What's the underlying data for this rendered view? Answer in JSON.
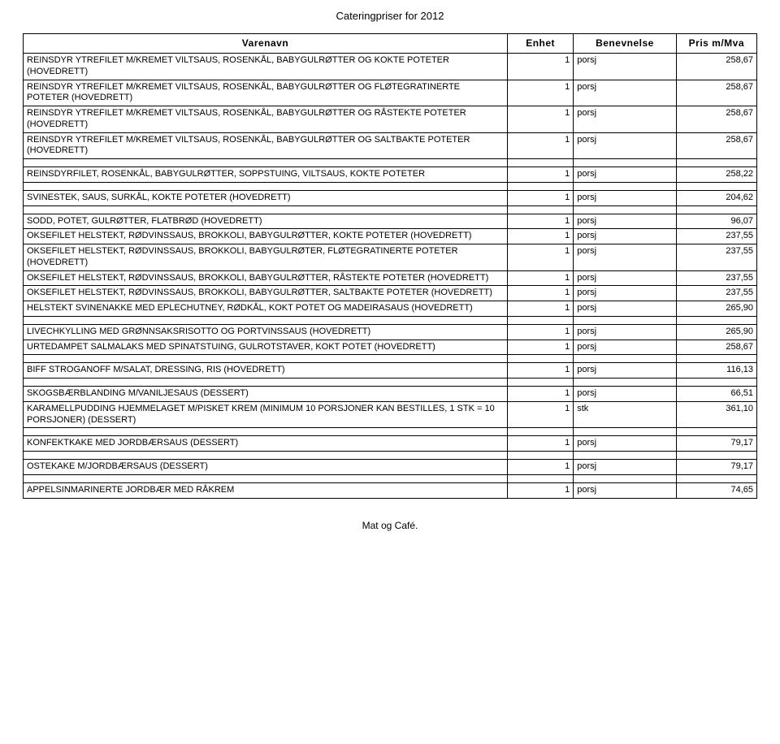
{
  "title": "Cateringpriser for 2012",
  "footer": "Mat og Café.",
  "headers": {
    "c1": "Varenavn",
    "c2": "Enhet",
    "c3": "Benevnelse",
    "c4": "Pris m/Mva"
  },
  "groups": [
    {
      "rows": [
        {
          "name": "REINSDYR YTREFILET M/KREMET VILTSAUS, ROSENKÅL, BABYGULRØTTER OG KOKTE POTETER (HOVEDRETT)",
          "qty": "1",
          "unit": "porsj",
          "price": "258,67"
        },
        {
          "name": "REINSDYR YTREFILET M/KREMET VILTSAUS, ROSENKÅL, BABYGULRØTTER OG FLØTEGRATINERTE POTETER (HOVEDRETT)",
          "qty": "1",
          "unit": "porsj",
          "price": "258,67"
        },
        {
          "name": "REINSDYR YTREFILET M/KREMET VILTSAUS, ROSENKÅL, BABYGULRØTTER OG RÅSTEKTE POTETER (HOVEDRETT)",
          "qty": "1",
          "unit": "porsj",
          "price": "258,67"
        },
        {
          "name": "REINSDYR YTREFILET M/KREMET VILTSAUS, ROSENKÅL, BABYGULRØTTER OG SALTBAKTE POTETER (HOVEDRETT)",
          "qty": "1",
          "unit": "porsj",
          "price": "258,67"
        }
      ]
    },
    {
      "rows": [
        {
          "name": "REINSDYRFILET, ROSENKÅL, BABYGULRØTTER, SOPPSTUING, VILTSAUS, KOKTE POTETER",
          "qty": "1",
          "unit": "porsj",
          "price": "258,22"
        }
      ]
    },
    {
      "rows": [
        {
          "name": "SVINESTEK, SAUS, SURKÅL, KOKTE POTETER (HOVEDRETT)",
          "qty": "1",
          "unit": "porsj",
          "price": "204,62"
        }
      ]
    },
    {
      "rows": [
        {
          "name": "SODD, POTET, GULRØTTER, FLATBRØD (HOVEDRETT)",
          "qty": "1",
          "unit": "porsj",
          "price": "96,07"
        },
        {
          "name": "OKSEFILET HELSTEKT, RØDVINSSAUS, BROKKOLI, BABYGULRØTTER, KOKTE POTETER (HOVEDRETT)",
          "qty": "1",
          "unit": "porsj",
          "price": "237,55"
        },
        {
          "name": "OKSEFILET HELSTEKT, RØDVINSSAUS, BROKKOLI, BABYGULRØTER, FLØTEGRATINERTE POTETER (HOVEDRETT)",
          "qty": "1",
          "unit": "porsj",
          "price": "237,55"
        },
        {
          "name": "OKSEFILET HELSTEKT, RØDVINSSAUS, BROKKOLI, BABYGULRØTTER, RÅSTEKTE POTETER (HOVEDRETT)",
          "qty": "1",
          "unit": "porsj",
          "price": "237,55"
        },
        {
          "name": "OKSEFILET HELSTEKT, RØDVINSSAUS, BROKKOLI, BABYGULRØTTER, SALTBAKTE POTETER (HOVEDRETT)",
          "qty": "1",
          "unit": "porsj",
          "price": "237,55"
        },
        {
          "name": "HELSTEKT SVINENAKKE MED EPLECHUTNEY, RØDKÅL, KOKT POTET OG MADEIRASAUS (HOVEDRETT)",
          "qty": "1",
          "unit": "porsj",
          "price": "265,90"
        }
      ]
    },
    {
      "rows": [
        {
          "name": "LIVECHKYLLING MED GRØNNSAKSRISOTTO OG PORTVINSSAUS (HOVEDRETT)",
          "qty": "1",
          "unit": "porsj",
          "price": "265,90"
        },
        {
          "name": "URTEDAMPET SALMALAKS MED SPINATSTUING, GULROTSTAVER, KOKT POTET (HOVEDRETT)",
          "qty": "1",
          "unit": "porsj",
          "price": "258,67"
        }
      ]
    },
    {
      "rows": [
        {
          "name": "BIFF STROGANOFF M/SALAT, DRESSING, RIS (HOVEDRETT)",
          "qty": "1",
          "unit": "porsj",
          "price": "116,13"
        }
      ]
    },
    {
      "rows": [
        {
          "name": "SKOGSBÆRBLANDING M/VANILJESAUS (DESSERT)",
          "qty": "1",
          "unit": "porsj",
          "price": "66,51"
        },
        {
          "name": "KARAMELLPUDDING HJEMMELAGET M/PISKET KREM (MINIMUM 10 PORSJONER KAN BESTILLES, 1 STK = 10 PORSJONER) (DESSERT)",
          "qty": "1",
          "unit": "stk",
          "price": "361,10"
        }
      ]
    },
    {
      "rows": [
        {
          "name": "KONFEKTKAKE MED JORDBÆRSAUS (DESSERT)",
          "qty": "1",
          "unit": "porsj",
          "price": "79,17"
        }
      ]
    },
    {
      "rows": [
        {
          "name": "OSTEKAKE M/JORDBÆRSAUS (DESSERT)",
          "qty": "1",
          "unit": "porsj",
          "price": "79,17"
        }
      ]
    },
    {
      "rows": [
        {
          "name": "APPELSINMARINERTE JORDBÆR MED RÅKREM",
          "qty": "1",
          "unit": "porsj",
          "price": "74,65"
        }
      ]
    }
  ]
}
